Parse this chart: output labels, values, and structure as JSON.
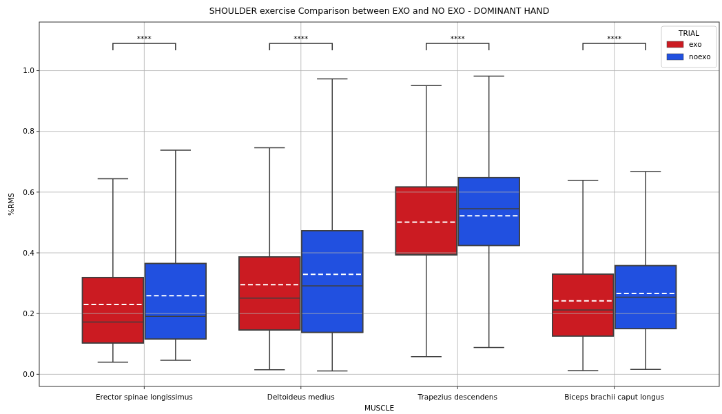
{
  "chart_data": {
    "type": "box",
    "title": "SHOULDER exercise Comparison between EXO and NO EXO - DOMINANT HAND",
    "xlabel": "MUSCLE",
    "ylabel": "%RMS",
    "legend_title": "TRIAL",
    "categories": [
      "Erector spinae longissimus",
      "Deltoideus medius",
      "Trapezius descendens",
      "Biceps brachii caput longus"
    ],
    "series": [
      {
        "name": "exo",
        "color": "#cb1b22",
        "boxes": [
          {
            "low": 0.04,
            "q1": 0.103,
            "median": 0.172,
            "q3": 0.319,
            "high": 0.644,
            "mean": 0.23
          },
          {
            "low": 0.015,
            "q1": 0.146,
            "median": 0.251,
            "q3": 0.387,
            "high": 0.746,
            "mean": 0.295
          },
          {
            "low": 0.058,
            "q1": 0.393,
            "median": 0.395,
            "q3": 0.617,
            "high": 0.951,
            "mean": 0.501
          },
          {
            "low": 0.012,
            "q1": 0.126,
            "median": 0.212,
            "q3": 0.33,
            "high": 0.639,
            "mean": 0.242
          }
        ]
      },
      {
        "name": "noexo",
        "color": "#2150e0",
        "boxes": [
          {
            "low": 0.046,
            "q1": 0.116,
            "median": 0.191,
            "q3": 0.365,
            "high": 0.738,
            "mean": 0.259
          },
          {
            "low": 0.011,
            "q1": 0.138,
            "median": 0.291,
            "q3": 0.473,
            "high": 0.973,
            "mean": 0.329
          },
          {
            "low": 0.088,
            "q1": 0.424,
            "median": 0.545,
            "q3": 0.648,
            "high": 0.982,
            "mean": 0.522
          },
          {
            "low": 0.016,
            "q1": 0.15,
            "median": 0.254,
            "q3": 0.358,
            "high": 0.668,
            "mean": 0.266
          }
        ]
      }
    ],
    "ylim": [
      -0.04,
      1.16
    ],
    "yticks": [
      {
        "value": 0,
        "label": "0.0"
      },
      0.2,
      0.4,
      0.6,
      0.8,
      {
        "value": 1,
        "label": "1.0"
      }
    ],
    "grid": true,
    "legend": "top right",
    "annotations": [
      "****",
      "****",
      "****",
      "****"
    ]
  }
}
